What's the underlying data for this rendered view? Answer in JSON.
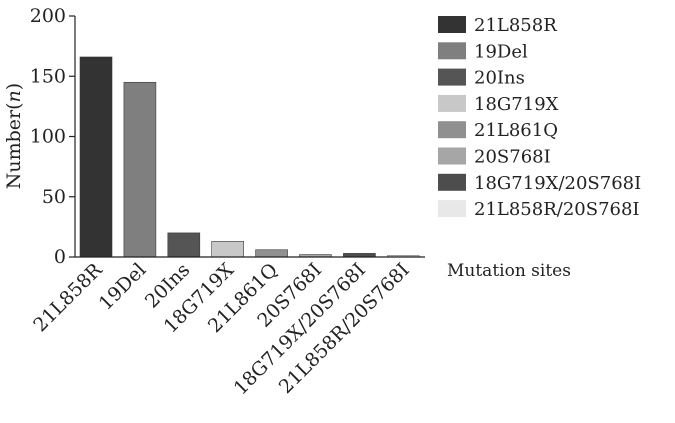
{
  "chart_data": {
    "type": "bar",
    "title": "",
    "xlabel": "Mutation sites",
    "ylabel": "Number(n)",
    "ylim": [
      0,
      200
    ],
    "yticks": [
      0,
      50,
      100,
      150,
      200
    ],
    "grid": false,
    "legend_position": "right",
    "categories": [
      "21L858R",
      "19Del",
      "20Ins",
      "18G719X",
      "21L861Q",
      "20S768I",
      "18G719X/20S768I",
      "21L858R/20S768I"
    ],
    "values": [
      166,
      145,
      20,
      13,
      6,
      2,
      3,
      1
    ],
    "colors": [
      "#333333",
      "#7f7f7f",
      "#555555",
      "#c8c8c8",
      "#909090",
      "#a6a6a6",
      "#4d4d4d",
      "#e8e8e8"
    ]
  }
}
